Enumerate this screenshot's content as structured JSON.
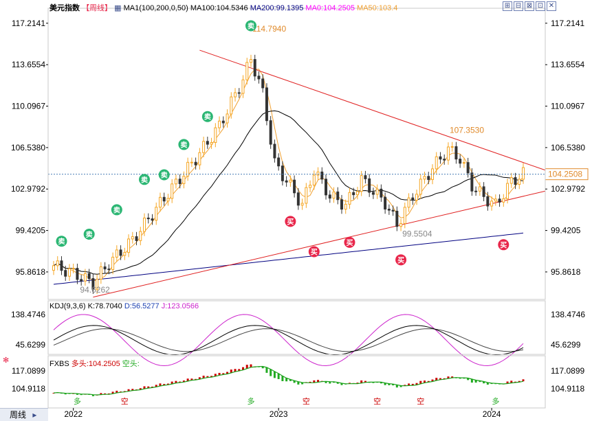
{
  "main_legend": {
    "symbol": "美元指数",
    "period": "【周线】",
    "ma_summary": "MA1(100,200,0,50)",
    "ma100": "MA100:104.5346",
    "ma200": "MA200:99.1395",
    "ma0": "MA0:104.2505",
    "ma50": "MA50:103.4"
  },
  "kdj_legend": {
    "name": "KDJ(9,3,6)",
    "k": "K:78.7040",
    "d": "D:56.5277",
    "j": "J:123.0566"
  },
  "fxbs_legend": {
    "name": "FXBS",
    "long": "多头:104.2505",
    "short": "空头:"
  },
  "toolbar": {
    "b1": "⊞",
    "b2": "⊟",
    "b3": "⊠",
    "b4": "⊡",
    "b5": "▣",
    "b6": "✕"
  },
  "bottom_bar": {
    "tab_label": "周线"
  },
  "colors": {
    "up": "#f5a623",
    "down": "#333333",
    "ma0": "#ff00ff",
    "ma50": "#f0a030",
    "ma100": "#000000",
    "ma200": "#000080",
    "trend": "#e02020",
    "sell": "#2bb673",
    "buy": "#e8264a",
    "k": "#000000",
    "d": "#444444",
    "j": "#cc22cc",
    "fxbs_long": "#cc0000",
    "fxbs_short": "#22aa22"
  },
  "chart_data": [
    {
      "type": "candlestick",
      "title": "美元指数 周线",
      "x_ticks": [
        "2022",
        "2023",
        "2024"
      ],
      "y_ticks": [
        "117.2141",
        "113.6554",
        "110.0967",
        "106.5380",
        "102.9792",
        "99.4205",
        "95.8618"
      ],
      "ylim": [
        93.5,
        118.5
      ],
      "current_price": "104.2508",
      "peak_label": "114.7940",
      "second_peak_label": "107.3530",
      "trough_label": "99.5504",
      "start_low_label": "94.6262",
      "signals": [
        {
          "kind": "sell",
          "label": "卖"
        },
        {
          "kind": "sell",
          "label": "卖"
        },
        {
          "kind": "sell",
          "label": "卖"
        },
        {
          "kind": "sell",
          "label": "卖"
        },
        {
          "kind": "sell",
          "label": "卖"
        },
        {
          "kind": "sell",
          "label": "卖"
        },
        {
          "kind": "sell",
          "label": "卖"
        },
        {
          "kind": "sell",
          "label": "卖"
        },
        {
          "kind": "buy",
          "label": "买"
        },
        {
          "kind": "buy",
          "label": "买"
        },
        {
          "kind": "buy",
          "label": "买"
        },
        {
          "kind": "buy",
          "label": "买"
        },
        {
          "kind": "buy",
          "label": "买"
        }
      ],
      "series": [
        {
          "name": "MA0",
          "values": []
        },
        {
          "name": "MA50",
          "values": []
        },
        {
          "name": "MA100",
          "values": []
        },
        {
          "name": "MA200",
          "values": []
        }
      ],
      "grid": false
    },
    {
      "type": "line",
      "title": "KDJ(9,3,6)",
      "y_ticks": [
        "138.4746",
        "45.6299"
      ],
      "series": [
        {
          "name": "K",
          "last": 78.704
        },
        {
          "name": "D",
          "last": 56.5277
        },
        {
          "name": "J",
          "last": 123.0566
        }
      ]
    },
    {
      "type": "bar",
      "title": "FXBS",
      "y_ticks": [
        "117.0899",
        "104.9118"
      ],
      "markers": [
        "多",
        "空"
      ],
      "series": [
        {
          "name": "多头",
          "last": 104.2505
        },
        {
          "name": "空头",
          "last": null
        }
      ]
    }
  ]
}
